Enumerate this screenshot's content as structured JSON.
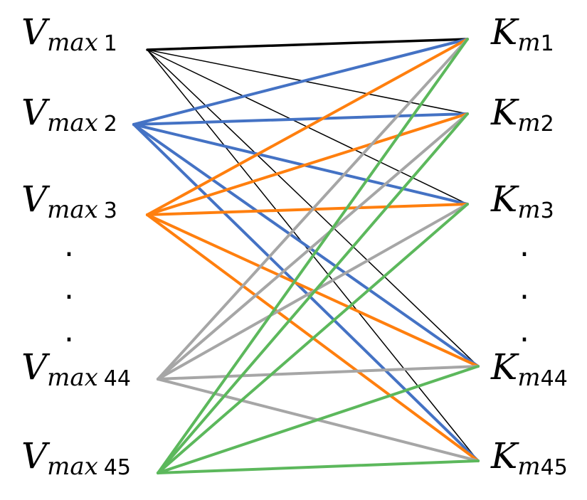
{
  "left_nodes": [
    {
      "id": "v1",
      "main": "V",
      "sub": "max",
      "num": "1"
    },
    {
      "id": "v2",
      "main": "V",
      "sub": "max",
      "num": "2"
    },
    {
      "id": "v3",
      "main": "V",
      "sub": "max",
      "num": "3"
    },
    {
      "id": "v44",
      "main": "V",
      "sub": "max",
      "num": "44"
    },
    {
      "id": "v45",
      "main": "V",
      "sub": "max",
      "num": "45"
    }
  ],
  "right_nodes": [
    {
      "id": "k1",
      "main": "K",
      "sub": "m",
      "num": "1"
    },
    {
      "id": "k2",
      "main": "K",
      "sub": "m",
      "num": "2"
    },
    {
      "id": "k3",
      "main": "K",
      "sub": "m",
      "num": "3"
    },
    {
      "id": "k44",
      "main": "K",
      "sub": "m",
      "num": "44"
    },
    {
      "id": "k45",
      "main": "K",
      "sub": "m",
      "num": "45"
    }
  ],
  "ellipsis": ".",
  "colors": {
    "v1": "#000000",
    "v2": "#4472c4",
    "v3": "#ff7f0e",
    "v44": "#a6a6a6",
    "v45": "#5cb85c"
  },
  "edges": [
    {
      "from": "v1",
      "to": "k1",
      "emphasis": "thick"
    },
    {
      "from": "v1",
      "to": "k2",
      "emphasis": "thin"
    },
    {
      "from": "v1",
      "to": "k3",
      "emphasis": "thin"
    },
    {
      "from": "v1",
      "to": "k44",
      "emphasis": "thin"
    },
    {
      "from": "v1",
      "to": "k45",
      "emphasis": "thin"
    },
    {
      "from": "v2",
      "to": "k1"
    },
    {
      "from": "v2",
      "to": "k2"
    },
    {
      "from": "v2",
      "to": "k3"
    },
    {
      "from": "v2",
      "to": "k44"
    },
    {
      "from": "v2",
      "to": "k45"
    },
    {
      "from": "v3",
      "to": "k1"
    },
    {
      "from": "v3",
      "to": "k2"
    },
    {
      "from": "v3",
      "to": "k3"
    },
    {
      "from": "v3",
      "to": "k44"
    },
    {
      "from": "v3",
      "to": "k45"
    },
    {
      "from": "v44",
      "to": "k1"
    },
    {
      "from": "v44",
      "to": "k2"
    },
    {
      "from": "v44",
      "to": "k3"
    },
    {
      "from": "v44",
      "to": "k44"
    },
    {
      "from": "v44",
      "to": "k45"
    },
    {
      "from": "v45",
      "to": "k1"
    },
    {
      "from": "v45",
      "to": "k2"
    },
    {
      "from": "v45",
      "to": "k3"
    },
    {
      "from": "v45",
      "to": "k44"
    },
    {
      "from": "v45",
      "to": "k45"
    }
  ]
}
